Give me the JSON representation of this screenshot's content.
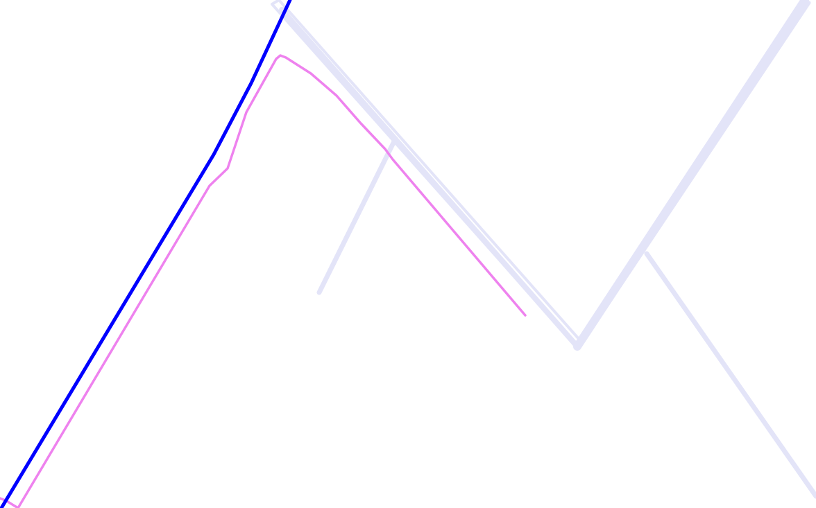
{
  "map": {
    "background_color": "#ffffff",
    "routes": [
      {
        "id": "route-primary",
        "color": "#0000ff"
      },
      {
        "id": "route-secondary",
        "color": "#ee82ee"
      },
      {
        "id": "road-faint",
        "color": "#e3e4f8"
      }
    ]
  }
}
